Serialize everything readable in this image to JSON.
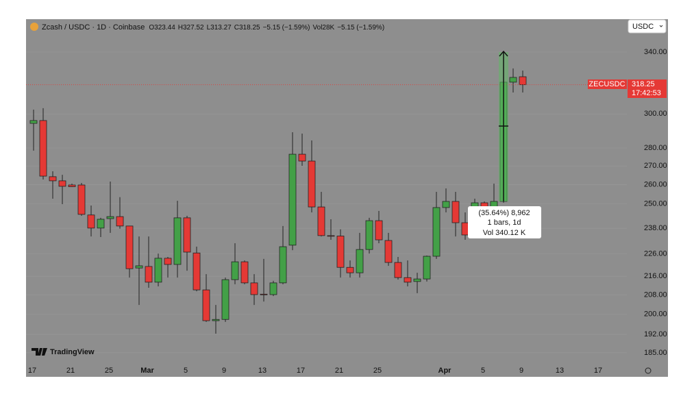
{
  "chart_data": {
    "type": "candlestick",
    "header": {
      "symbol": "Zcash / USDC · 1D · Coinbase",
      "ohlc_labels": [
        "O",
        "H",
        "L",
        "C"
      ],
      "change": "−5.15 (−1.59%)",
      "volume_label": "Vol",
      "volume": "28K"
    },
    "currency": "USDC",
    "price_label": {
      "symbol": "ZECUSDC",
      "countdown": "17:42:53"
    },
    "measure": [
      "(35.64%) 8,962",
      "1 bars, 1d",
      "Vol 340.12 K"
    ],
    "brand": "TradingView",
    "categories": [
      "17",
      null,
      null,
      null,
      "21",
      null,
      null,
      null,
      "25",
      null,
      null,
      null,
      "Mar",
      null,
      null,
      null,
      "5",
      null,
      null,
      null,
      "9",
      null,
      null,
      null,
      "13",
      null,
      null,
      null,
      "17",
      null,
      null,
      null,
      "21",
      null,
      null,
      null,
      "25",
      null,
      null,
      null,
      null,
      null,
      null,
      "Apr",
      null,
      null,
      null,
      "5",
      null,
      null,
      null,
      "9",
      null,
      null,
      null,
      "13",
      null,
      null,
      null,
      "17",
      null,
      null
    ],
    "open": [
      294.3,
      296.0,
      264.2,
      262.0,
      259.8,
      259.8,
      244.5,
      238.1,
      242.7,
      243.7,
      239.1,
      219.6,
      220.3,
      213.4,
      224.0,
      221.2,
      243.1,
      226.4,
      210.1,
      197.4,
      197.9,
      214.5,
      222.4,
      213.1,
      208.3,
      208.1,
      213.1,
      230.0,
      276.5,
      272.7,
      248.5,
      234.5,
      234.3,
      219.9,
      217.5,
      228.0,
      241.7,
      232.2,
      222.1,
      215.4,
      213.7,
      214.8,
      224.9,
      248.2,
      251.3,
      240.7,
      234.8,
      250.6,
      245.4,
      251.3,
      319.9,
      323.44,
      null,
      null,
      null,
      null,
      null,
      null,
      null,
      null,
      null,
      null
    ],
    "high": [
      302.6,
      303.5,
      267.1,
      265.2,
      260.5,
      260.9,
      249.2,
      243.1,
      261.6,
      253.5,
      239.1,
      234.1,
      234.1,
      226.1,
      224.6,
      251.6,
      244.1,
      229.3,
      216.9,
      203.8,
      215.4,
      230.9,
      223.0,
      216.9,
      223.7,
      214.0,
      239.1,
      289.1,
      288.3,
      284.3,
      256.2,
      242.4,
      237.5,
      223.0,
      235.8,
      243.1,
      246.5,
      235.8,
      224.6,
      223.0,
      217.5,
      225.2,
      256.2,
      258.0,
      256.2,
      245.8,
      252.7,
      251.3,
      260.5,
      328.9,
      328.9,
      327.52,
      null,
      null,
      null,
      null,
      null,
      null,
      null,
      null,
      null,
      null
    ],
    "low": [
      278.5,
      262.7,
      252.7,
      249.9,
      258.7,
      244.1,
      234.1,
      233.8,
      235.8,
      237.8,
      215.4,
      203.8,
      211.0,
      211.6,
      215.4,
      215.4,
      218.4,
      209.5,
      196.9,
      192.3,
      196.9,
      212.5,
      212.5,
      203.8,
      205.2,
      207.5,
      212.5,
      227.7,
      270.1,
      245.8,
      234.1,
      232.5,
      215.4,
      215.4,
      215.4,
      226.1,
      230.9,
      220.6,
      214.5,
      211.6,
      208.7,
      213.7,
      223.7,
      245.8,
      234.1,
      232.5,
      233.8,
      243.1,
      243.1,
      250.6,
      313.3,
      313.27,
      null,
      null,
      null,
      null,
      null,
      null,
      null,
      null,
      null,
      null
    ],
    "close": [
      296.0,
      264.5,
      262.0,
      259.1,
      258.9,
      244.8,
      238.1,
      242.4,
      243.7,
      239.1,
      219.3,
      220.6,
      213.4,
      224.0,
      221.2,
      243.1,
      226.8,
      210.1,
      197.4,
      197.9,
      214.5,
      222.4,
      213.1,
      208.1,
      208.1,
      213.1,
      229.3,
      276.5,
      272.7,
      248.5,
      234.5,
      234.3,
      219.9,
      217.5,
      228.0,
      241.7,
      232.5,
      222.1,
      215.4,
      213.4,
      214.8,
      224.9,
      248.2,
      251.3,
      240.7,
      234.8,
      250.6,
      245.1,
      251.3,
      319.9,
      323.0,
      318.25,
      null,
      null,
      null,
      null,
      null,
      null,
      null,
      null,
      null,
      null
    ],
    "up_color": "#43a047",
    "down_color": "#e53935",
    "log_scale": true,
    "grid": true,
    "ylim": [
      176.2,
      363.4
    ],
    "yticks": [
      {
        "value": 340,
        "label": "340.00"
      },
      {
        "value": 300,
        "label": "300.00"
      },
      {
        "value": 280,
        "label": "280.00"
      },
      {
        "value": 270,
        "label": "270.00"
      },
      {
        "value": 260,
        "label": "260.00"
      },
      {
        "value": 250,
        "label": "250.00"
      },
      {
        "value": 238,
        "label": "238.00"
      },
      {
        "value": 226,
        "label": "226.00"
      },
      {
        "value": 216,
        "label": "216.00"
      },
      {
        "value": 208,
        "label": "208.00"
      },
      {
        "value": 200,
        "label": "200.00"
      },
      {
        "value": 192,
        "label": "192.00"
      },
      {
        "value": 185,
        "label": "185.00"
      }
    ]
  }
}
